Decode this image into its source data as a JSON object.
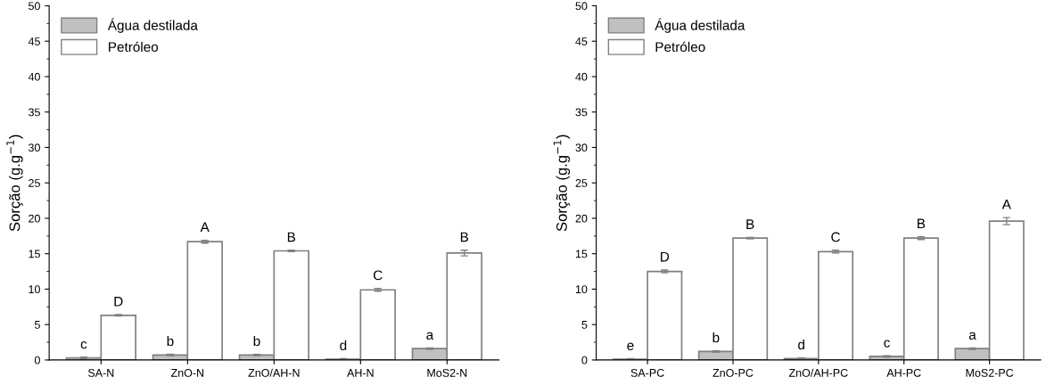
{
  "chart_data": [
    {
      "type": "bar",
      "ylabel": "Sorção (g.g$^{−1}$)",
      "categories": [
        "SA-N",
        "ZnO-N",
        "ZnO/AH-N",
        "AH-N",
        "MoS2-N"
      ],
      "ylim": [
        0,
        50
      ],
      "yticks": [
        0,
        5,
        10,
        15,
        20,
        25,
        30,
        35,
        40,
        45,
        50
      ],
      "legend": "top left",
      "grid": false,
      "series": [
        {
          "name": "Água destilada",
          "color": "#c0c0c0",
          "values": [
            0.3,
            0.7,
            0.7,
            0.1,
            1.6
          ],
          "errors": [
            0.1,
            0.1,
            0.1,
            0.1,
            0.1
          ],
          "value_labels": [
            "c",
            "b",
            "b",
            "d",
            "a"
          ]
        },
        {
          "name": "Petróleo",
          "color": "#ffffff",
          "values": [
            6.3,
            16.7,
            15.4,
            9.9,
            15.1
          ],
          "errors": [
            0.1,
            0.2,
            0.1,
            0.2,
            0.4
          ],
          "value_labels": [
            "D",
            "A",
            "B",
            "C",
            "B"
          ]
        }
      ]
    },
    {
      "type": "bar",
      "ylabel": "Sorção (g.g$^{−1}$)",
      "categories": [
        "SA-PC",
        "ZnO-PC",
        "ZnO/AH-PC",
        "AH-PC",
        "MoS2-PC"
      ],
      "ylim": [
        0,
        50
      ],
      "yticks": [
        0,
        5,
        10,
        15,
        20,
        25,
        30,
        35,
        40,
        45,
        50
      ],
      "legend": "top left",
      "grid": false,
      "series": [
        {
          "name": "Água destilada",
          "color": "#c0c0c0",
          "values": [
            0.1,
            1.2,
            0.2,
            0.5,
            1.6
          ],
          "errors": [
            0.1,
            0.1,
            0.1,
            0.1,
            0.1
          ],
          "value_labels": [
            "e",
            "b",
            "d",
            "c",
            "a"
          ]
        },
        {
          "name": "Petróleo",
          "color": "#ffffff",
          "values": [
            12.5,
            17.2,
            15.3,
            17.2,
            19.6
          ],
          "errors": [
            0.2,
            0.1,
            0.2,
            0.2,
            0.5
          ],
          "value_labels": [
            "D",
            "B",
            "C",
            "B",
            "A"
          ]
        }
      ]
    }
  ]
}
